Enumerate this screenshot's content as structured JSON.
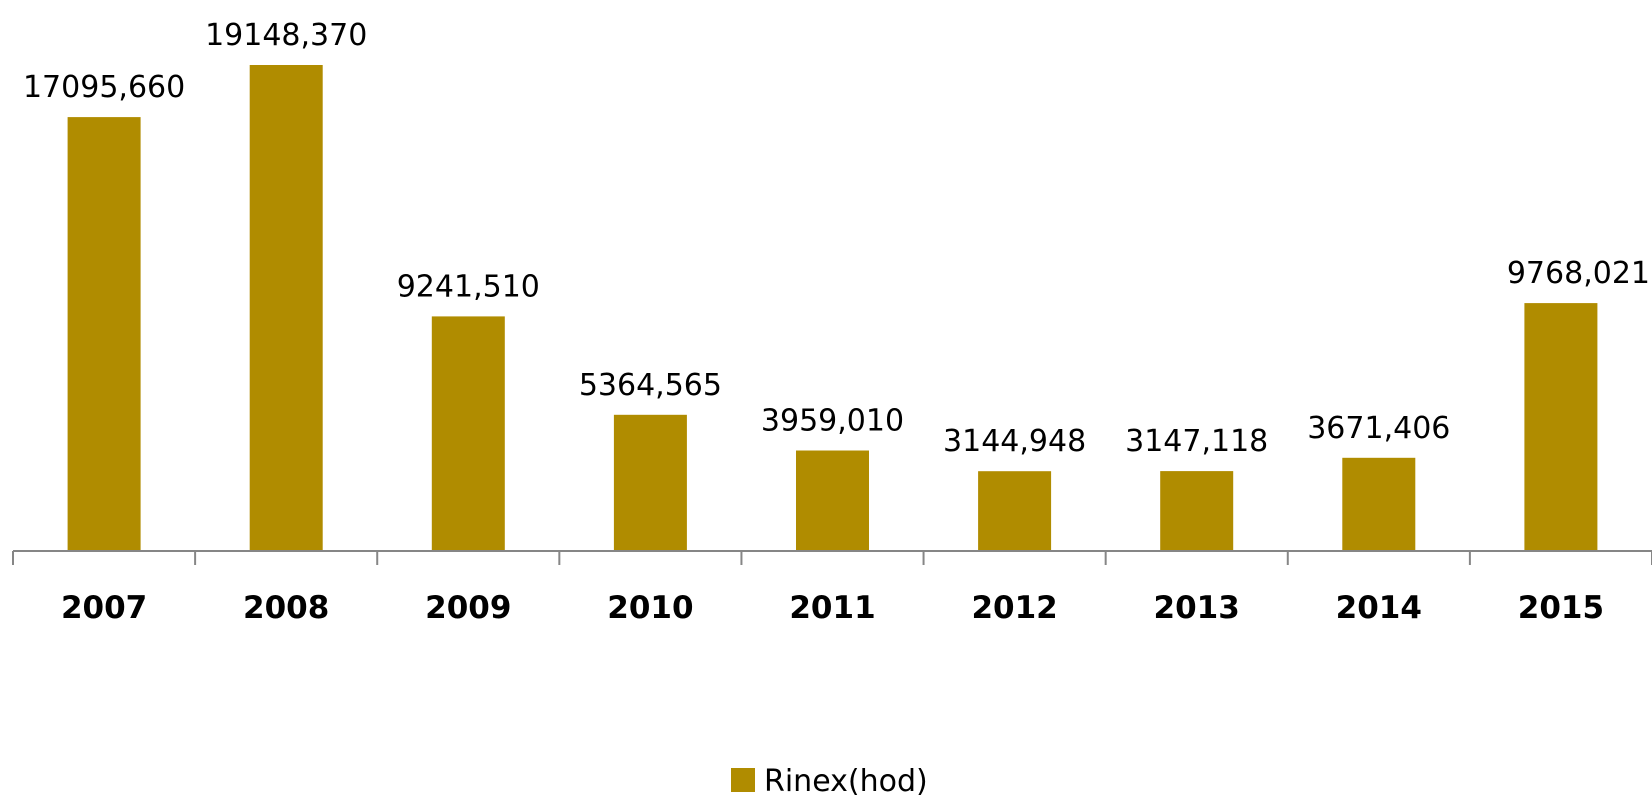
{
  "chart_data": {
    "type": "bar",
    "categories": [
      "2007",
      "2008",
      "2009",
      "2010",
      "2011",
      "2012",
      "2013",
      "2014",
      "2015"
    ],
    "series": [
      {
        "name": "Rinex(hod)",
        "values": [
          17095.66,
          19148.37,
          9241.51,
          5364.565,
          3959.01,
          3144.948,
          3147.118,
          3671.406,
          9768.021
        ],
        "labels": [
          "17095,660",
          "19148,370",
          "9241,510",
          "5364,565",
          "3959,010",
          "3144,948",
          "3147,118",
          "3671,406",
          "9768,021"
        ],
        "color": "#B08C00"
      }
    ],
    "ylim": [
      0,
      19148.37
    ],
    "grid": false,
    "legend": "bottom-center"
  }
}
